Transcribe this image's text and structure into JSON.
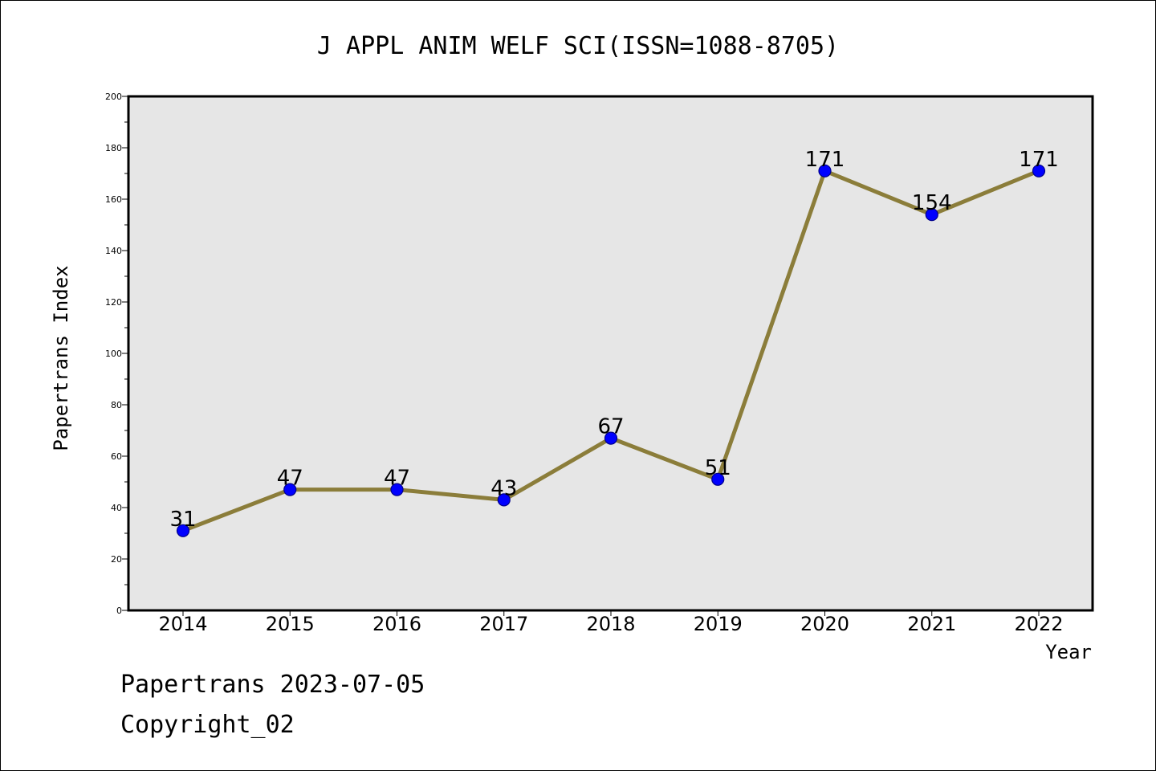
{
  "chart_data": {
    "type": "line",
    "title": "J APPL ANIM WELF SCI(ISSN=1088-8705)",
    "xlabel": "Year",
    "ylabel": "Papertrans Index",
    "categories": [
      "2014",
      "2015",
      "2016",
      "2017",
      "2018",
      "2019",
      "2020",
      "2021",
      "2022"
    ],
    "values": [
      31,
      47,
      47,
      43,
      67,
      51,
      171,
      154,
      171
    ],
    "ylim": [
      0,
      200
    ],
    "y_ticks": [
      "0",
      "20",
      "40",
      "60",
      "80",
      "100",
      "120",
      "140",
      "160",
      "180",
      "200"
    ],
    "grid": false,
    "legend": "none",
    "colors": {
      "line": "#8B7D3A",
      "marker": "#0000FF",
      "marker_edge": "#00008B",
      "plot_background": "#E6E6E6"
    }
  },
  "footer": {
    "line1": "Papertrans 2023-07-05",
    "line2": "Copyright_02"
  }
}
